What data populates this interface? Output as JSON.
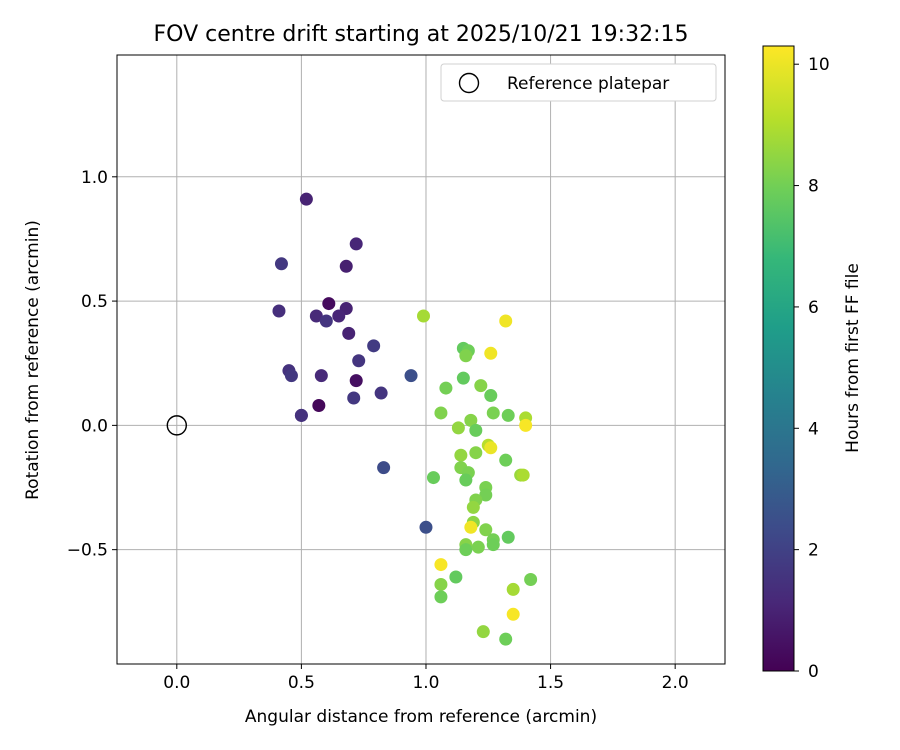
{
  "chart_data": {
    "type": "scatter",
    "title": "FOV centre drift starting at 2025/10/21 19:32:15",
    "xlabel": "Angular distance from reference (arcmin)",
    "ylabel": "Rotation from reference (arcmin)",
    "xlim": [
      -0.24,
      2.2
    ],
    "ylim": [
      -0.96,
      1.49
    ],
    "xticks": [
      0.0,
      0.5,
      1.0,
      1.5,
      2.0
    ],
    "xtick_labels": [
      "0.0",
      "0.5",
      "1.0",
      "1.5",
      "2.0"
    ],
    "yticks": [
      -0.5,
      0.0,
      0.5,
      1.0
    ],
    "ytick_labels": [
      "−0.5",
      "0.0",
      "0.5",
      "1.0"
    ],
    "grid": true,
    "legend": {
      "position": "top-right",
      "entries": [
        "Reference platepar"
      ]
    },
    "reference_point": {
      "x": 0.0,
      "y": 0.0
    },
    "colorbar": {
      "label": "Hours from first FF file",
      "colormap": "viridis",
      "range": [
        0,
        10.3
      ],
      "ticks": [
        0,
        2,
        4,
        6,
        8,
        10
      ],
      "tick_labels": [
        "0",
        "2",
        "4",
        "6",
        "8",
        "10"
      ],
      "colors": [
        "#440154",
        "#482878",
        "#3e4989",
        "#31688e",
        "#26828e",
        "#1f9e89",
        "#35b779",
        "#6ece58",
        "#b5de2b",
        "#fde725"
      ]
    },
    "points": [
      {
        "x": 0.52,
        "y": 0.91,
        "h": 1.0
      },
      {
        "x": 0.72,
        "y": 0.73,
        "h": 1.1
      },
      {
        "x": 0.42,
        "y": 0.65,
        "h": 1.7
      },
      {
        "x": 0.68,
        "y": 0.64,
        "h": 0.9
      },
      {
        "x": 0.61,
        "y": 0.49,
        "h": 0.3
      },
      {
        "x": 0.68,
        "y": 0.47,
        "h": 1.0
      },
      {
        "x": 0.41,
        "y": 0.46,
        "h": 1.4
      },
      {
        "x": 0.56,
        "y": 0.44,
        "h": 1.2
      },
      {
        "x": 0.65,
        "y": 0.44,
        "h": 1.1
      },
      {
        "x": 0.6,
        "y": 0.42,
        "h": 1.6
      },
      {
        "x": 0.69,
        "y": 0.37,
        "h": 1.0
      },
      {
        "x": 0.79,
        "y": 0.32,
        "h": 1.8
      },
      {
        "x": 0.73,
        "y": 0.26,
        "h": 1.6
      },
      {
        "x": 0.45,
        "y": 0.22,
        "h": 1.5
      },
      {
        "x": 0.46,
        "y": 0.2,
        "h": 1.7
      },
      {
        "x": 0.58,
        "y": 0.2,
        "h": 1.2
      },
      {
        "x": 0.72,
        "y": 0.18,
        "h": 0.4
      },
      {
        "x": 0.82,
        "y": 0.13,
        "h": 1.6
      },
      {
        "x": 0.71,
        "y": 0.11,
        "h": 1.7
      },
      {
        "x": 0.57,
        "y": 0.08,
        "h": 0.2
      },
      {
        "x": 0.5,
        "y": 0.04,
        "h": 1.2
      },
      {
        "x": 0.5,
        "y": 0.04,
        "h": 1.5
      },
      {
        "x": 0.94,
        "y": 0.2,
        "h": 2.5
      },
      {
        "x": 0.83,
        "y": -0.17,
        "h": 2.4
      },
      {
        "x": 1.0,
        "y": -0.41,
        "h": 2.5
      },
      {
        "x": 0.99,
        "y": 0.44,
        "h": 8.9
      },
      {
        "x": 1.32,
        "y": 0.42,
        "h": 10.1
      },
      {
        "x": 1.15,
        "y": 0.31,
        "h": 7.8
      },
      {
        "x": 1.17,
        "y": 0.3,
        "h": 8.0
      },
      {
        "x": 1.16,
        "y": 0.28,
        "h": 8.3
      },
      {
        "x": 1.26,
        "y": 0.29,
        "h": 10.1
      },
      {
        "x": 1.15,
        "y": 0.19,
        "h": 7.8
      },
      {
        "x": 1.08,
        "y": 0.15,
        "h": 8.1
      },
      {
        "x": 1.22,
        "y": 0.16,
        "h": 8.4
      },
      {
        "x": 1.26,
        "y": 0.12,
        "h": 7.9
      },
      {
        "x": 1.06,
        "y": 0.05,
        "h": 8.3
      },
      {
        "x": 1.27,
        "y": 0.05,
        "h": 8.2
      },
      {
        "x": 1.33,
        "y": 0.04,
        "h": 8.0
      },
      {
        "x": 1.18,
        "y": 0.02,
        "h": 8.4
      },
      {
        "x": 1.4,
        "y": 0.03,
        "h": 9.0
      },
      {
        "x": 1.4,
        "y": 0.0,
        "h": 10.2
      },
      {
        "x": 1.13,
        "y": -0.01,
        "h": 8.6
      },
      {
        "x": 1.2,
        "y": -0.02,
        "h": 7.9
      },
      {
        "x": 1.25,
        "y": -0.08,
        "h": 9.2
      },
      {
        "x": 1.26,
        "y": -0.09,
        "h": 10.0
      },
      {
        "x": 1.2,
        "y": -0.11,
        "h": 8.4
      },
      {
        "x": 1.14,
        "y": -0.12,
        "h": 8.6
      },
      {
        "x": 1.32,
        "y": -0.14,
        "h": 8.0
      },
      {
        "x": 1.14,
        "y": -0.17,
        "h": 8.3
      },
      {
        "x": 1.17,
        "y": -0.19,
        "h": 8.2
      },
      {
        "x": 1.38,
        "y": -0.2,
        "h": 8.7
      },
      {
        "x": 1.39,
        "y": -0.2,
        "h": 9.0
      },
      {
        "x": 1.03,
        "y": -0.21,
        "h": 7.9
      },
      {
        "x": 1.16,
        "y": -0.22,
        "h": 7.9
      },
      {
        "x": 1.24,
        "y": -0.25,
        "h": 8.2
      },
      {
        "x": 1.24,
        "y": -0.28,
        "h": 8.1
      },
      {
        "x": 1.2,
        "y": -0.3,
        "h": 8.3
      },
      {
        "x": 1.19,
        "y": -0.33,
        "h": 8.6
      },
      {
        "x": 1.19,
        "y": -0.39,
        "h": 8.5
      },
      {
        "x": 1.18,
        "y": -0.41,
        "h": 10.1
      },
      {
        "x": 1.24,
        "y": -0.42,
        "h": 8.3
      },
      {
        "x": 1.27,
        "y": -0.46,
        "h": 8.1
      },
      {
        "x": 1.33,
        "y": -0.45,
        "h": 7.8
      },
      {
        "x": 1.27,
        "y": -0.48,
        "h": 8.0
      },
      {
        "x": 1.16,
        "y": -0.48,
        "h": 8.4
      },
      {
        "x": 1.16,
        "y": -0.5,
        "h": 8.0
      },
      {
        "x": 1.21,
        "y": -0.49,
        "h": 8.2
      },
      {
        "x": 1.06,
        "y": -0.56,
        "h": 10.2
      },
      {
        "x": 1.12,
        "y": -0.61,
        "h": 7.8
      },
      {
        "x": 1.06,
        "y": -0.64,
        "h": 8.4
      },
      {
        "x": 1.42,
        "y": -0.62,
        "h": 8.1
      },
      {
        "x": 1.35,
        "y": -0.66,
        "h": 8.9
      },
      {
        "x": 1.06,
        "y": -0.69,
        "h": 8.0
      },
      {
        "x": 1.35,
        "y": -0.76,
        "h": 10.2
      },
      {
        "x": 1.23,
        "y": -0.83,
        "h": 8.6
      },
      {
        "x": 1.32,
        "y": -0.86,
        "h": 8.0
      }
    ]
  }
}
